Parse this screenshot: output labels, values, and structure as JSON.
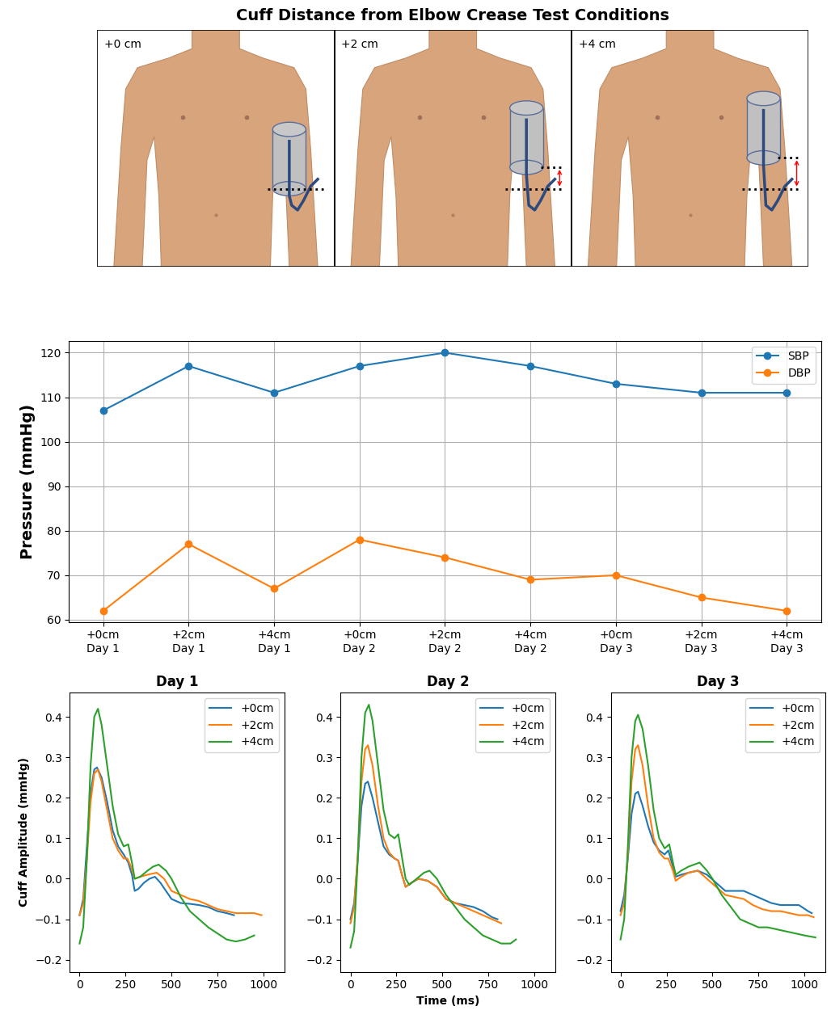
{
  "diagram": {
    "title": "Cuff Distance from Elbow Crease Test Conditions",
    "panels": [
      "+0 cm",
      "+2 cm",
      "+4 cm"
    ]
  },
  "chart_data": [
    {
      "type": "line",
      "ylabel": "Pressure (mmHg)",
      "categories": [
        "+0cm\nDay 1",
        "+2cm\nDay 1",
        "+4cm\nDay 1",
        "+0cm\nDay 2",
        "+2cm\nDay 2",
        "+4cm\nDay 2",
        "+0cm\nDay 3",
        "+2cm\nDay 3",
        "+4cm\nDay 3"
      ],
      "ylim": [
        59.5,
        122.7
      ],
      "yticks": [
        60,
        70,
        80,
        90,
        100,
        110,
        120
      ],
      "grid": true,
      "legend": "upper right",
      "series": [
        {
          "name": "SBP",
          "color": "#1f77b4",
          "marker": "o",
          "values": [
            107,
            117,
            111,
            117,
            120,
            117,
            113,
            111,
            111
          ]
        },
        {
          "name": "DBP",
          "color": "#ff7f0e",
          "marker": "o",
          "values": [
            62,
            77,
            67,
            78,
            74,
            69,
            70,
            65,
            62
          ]
        }
      ]
    },
    {
      "type": "line",
      "title": "Day 1",
      "ylabel": "Cuff Amplitude (mmHg)",
      "xlim": [
        -53,
        1113
      ],
      "xticks": [
        0,
        250,
        500,
        750,
        1000
      ],
      "ylim": [
        -0.23,
        0.46
      ],
      "yticks": [
        {
          "value": -0.2,
          "label": "−0.2"
        },
        {
          "value": -0.1,
          "label": "−0.1"
        },
        0.0,
        0.1,
        0.2,
        0.3,
        0.4
      ],
      "grid": false,
      "legend": "upper right",
      "series": [
        {
          "name": "+0cm",
          "color": "#1f77b4",
          "x": [
            0,
            20,
            40,
            60,
            80,
            95,
            120,
            150,
            180,
            210,
            240,
            265,
            285,
            300,
            320,
            350,
            380,
            410,
            440,
            470,
            500,
            550,
            600,
            650,
            700,
            750,
            800,
            840
          ],
          "values": [
            -0.09,
            -0.05,
            0.08,
            0.21,
            0.27,
            0.275,
            0.25,
            0.19,
            0.12,
            0.08,
            0.06,
            0.04,
            0.01,
            -0.03,
            -0.025,
            -0.01,
            0.0,
            0.005,
            -0.01,
            -0.03,
            -0.05,
            -0.06,
            -0.062,
            -0.065,
            -0.07,
            -0.08,
            -0.085,
            -0.09
          ]
        },
        {
          "name": "+2cm",
          "color": "#ff7f0e",
          "x": [
            0,
            20,
            40,
            60,
            80,
            100,
            120,
            150,
            180,
            210,
            240,
            260,
            280,
            300,
            330,
            370,
            420,
            460,
            500,
            550,
            600,
            650,
            700,
            750,
            800,
            850,
            900,
            950,
            990
          ],
          "values": [
            -0.09,
            -0.06,
            0.05,
            0.19,
            0.26,
            0.27,
            0.24,
            0.17,
            0.1,
            0.07,
            0.05,
            0.05,
            0.03,
            0.0,
            0.005,
            0.01,
            0.015,
            0.0,
            -0.03,
            -0.04,
            -0.05,
            -0.055,
            -0.065,
            -0.075,
            -0.08,
            -0.085,
            -0.085,
            -0.085,
            -0.09
          ]
        },
        {
          "name": "+4cm",
          "color": "#2ca02c",
          "x": [
            0,
            20,
            40,
            60,
            80,
            100,
            120,
            150,
            180,
            210,
            240,
            265,
            285,
            300,
            330,
            370,
            400,
            430,
            470,
            500,
            550,
            600,
            650,
            700,
            750,
            800,
            850,
            900,
            950
          ],
          "values": [
            -0.16,
            -0.12,
            0.05,
            0.28,
            0.4,
            0.42,
            0.38,
            0.28,
            0.18,
            0.11,
            0.08,
            0.085,
            0.04,
            0.0,
            0.005,
            0.02,
            0.03,
            0.035,
            0.02,
            0.0,
            -0.045,
            -0.08,
            -0.1,
            -0.12,
            -0.135,
            -0.15,
            -0.155,
            -0.15,
            -0.14
          ]
        }
      ]
    },
    {
      "type": "line",
      "title": "Day 2",
      "xlabel": "Time (ms)",
      "xlim": [
        -53,
        1113
      ],
      "xticks": [
        0,
        250,
        500,
        750,
        1000
      ],
      "ylim": [
        -0.23,
        0.46
      ],
      "yticks": [
        {
          "value": -0.2,
          "label": "−0.2"
        },
        {
          "value": -0.1,
          "label": "−0.1"
        },
        0.0,
        0.1,
        0.2,
        0.3,
        0.4
      ],
      "grid": false,
      "legend": "upper right",
      "series": [
        {
          "name": "+0cm",
          "color": "#1f77b4",
          "x": [
            0,
            20,
            40,
            60,
            80,
            95,
            120,
            150,
            180,
            210,
            240,
            260,
            280,
            300,
            330,
            370,
            420,
            470,
            520,
            570,
            620,
            670,
            720,
            770,
            800
          ],
          "values": [
            -0.1,
            -0.06,
            0.05,
            0.18,
            0.235,
            0.24,
            0.2,
            0.14,
            0.08,
            0.06,
            0.05,
            0.045,
            0.01,
            -0.02,
            -0.01,
            0.0,
            -0.005,
            -0.02,
            -0.05,
            -0.06,
            -0.065,
            -0.07,
            -0.08,
            -0.095,
            -0.1
          ]
        },
        {
          "name": "+2cm",
          "color": "#ff7f0e",
          "x": [
            0,
            20,
            40,
            60,
            80,
            95,
            120,
            150,
            180,
            210,
            240,
            260,
            280,
            300,
            330,
            370,
            420,
            470,
            520,
            570,
            620,
            670,
            720,
            770,
            820
          ],
          "values": [
            -0.11,
            -0.07,
            0.06,
            0.24,
            0.32,
            0.33,
            0.28,
            0.18,
            0.1,
            0.065,
            0.05,
            0.045,
            0.01,
            -0.02,
            -0.01,
            0.0,
            -0.005,
            -0.02,
            -0.05,
            -0.06,
            -0.07,
            -0.08,
            -0.09,
            -0.1,
            -0.11
          ]
        },
        {
          "name": "+4cm",
          "color": "#2ca02c",
          "x": [
            0,
            20,
            40,
            60,
            80,
            100,
            120,
            150,
            180,
            210,
            240,
            260,
            285,
            300,
            320,
            360,
            400,
            430,
            470,
            520,
            570,
            620,
            670,
            720,
            770,
            820,
            870,
            900
          ],
          "values": [
            -0.17,
            -0.13,
            0.05,
            0.3,
            0.41,
            0.43,
            0.39,
            0.28,
            0.17,
            0.11,
            0.1,
            0.11,
            0.04,
            0.0,
            -0.015,
            0.0,
            0.015,
            0.02,
            0.0,
            -0.04,
            -0.07,
            -0.1,
            -0.12,
            -0.14,
            -0.15,
            -0.16,
            -0.16,
            -0.15
          ]
        }
      ]
    },
    {
      "type": "line",
      "title": "Day 3",
      "xlim": [
        -53,
        1113
      ],
      "xticks": [
        0,
        250,
        500,
        750,
        1000
      ],
      "ylim": [
        -0.23,
        0.46
      ],
      "yticks": [
        {
          "value": -0.2,
          "label": "−0.2"
        },
        {
          "value": -0.1,
          "label": "−0.1"
        },
        0.0,
        0.1,
        0.2,
        0.3,
        0.4
      ],
      "grid": false,
      "legend": "upper right",
      "series": [
        {
          "name": "+0cm",
          "color": "#1f77b4",
          "x": [
            0,
            20,
            40,
            60,
            80,
            95,
            120,
            150,
            180,
            210,
            240,
            260,
            285,
            300,
            330,
            370,
            420,
            470,
            520,
            570,
            620,
            670,
            720,
            770,
            820,
            870,
            920,
            970,
            1020,
            1040
          ],
          "values": [
            -0.08,
            -0.04,
            0.05,
            0.16,
            0.21,
            0.215,
            0.18,
            0.13,
            0.09,
            0.07,
            0.06,
            0.07,
            0.03,
            0.005,
            0.01,
            0.015,
            0.02,
            0.01,
            -0.01,
            -0.03,
            -0.03,
            -0.03,
            -0.04,
            -0.05,
            -0.06,
            -0.065,
            -0.065,
            -0.065,
            -0.08,
            -0.085
          ]
        },
        {
          "name": "+2cm",
          "color": "#ff7f0e",
          "x": [
            0,
            20,
            40,
            60,
            80,
            95,
            120,
            150,
            180,
            210,
            240,
            260,
            285,
            300,
            330,
            370,
            420,
            470,
            520,
            570,
            620,
            670,
            720,
            770,
            820,
            870,
            920,
            970,
            1020,
            1050
          ],
          "values": [
            -0.09,
            -0.06,
            0.06,
            0.24,
            0.32,
            0.33,
            0.28,
            0.18,
            0.1,
            0.065,
            0.05,
            0.05,
            0.02,
            -0.005,
            0.005,
            0.015,
            0.02,
            0.0,
            -0.02,
            -0.04,
            -0.045,
            -0.05,
            -0.065,
            -0.075,
            -0.08,
            -0.08,
            -0.085,
            -0.09,
            -0.09,
            -0.095
          ]
        },
        {
          "name": "+4cm",
          "color": "#2ca02c",
          "x": [
            0,
            20,
            40,
            60,
            80,
            95,
            120,
            150,
            180,
            210,
            240,
            265,
            285,
            300,
            330,
            370,
            400,
            430,
            470,
            500,
            550,
            600,
            650,
            700,
            750,
            800,
            850,
            900,
            950,
            1000,
            1060
          ],
          "values": [
            -0.15,
            -0.1,
            0.08,
            0.3,
            0.39,
            0.405,
            0.37,
            0.28,
            0.17,
            0.1,
            0.075,
            0.085,
            0.04,
            0.01,
            0.02,
            0.03,
            0.035,
            0.04,
            0.02,
            0.0,
            -0.04,
            -0.07,
            -0.1,
            -0.11,
            -0.12,
            -0.12,
            -0.125,
            -0.13,
            -0.135,
            -0.14,
            -0.145
          ]
        }
      ]
    }
  ]
}
